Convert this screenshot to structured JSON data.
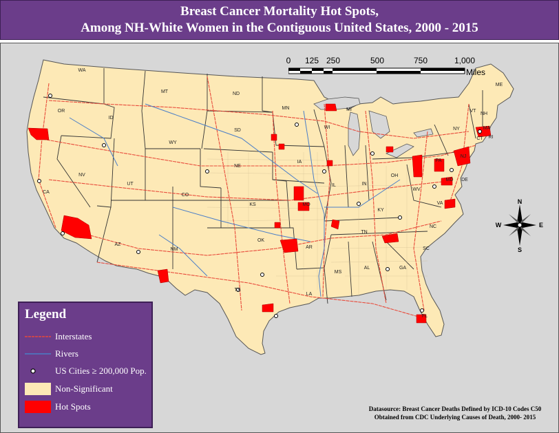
{
  "title": {
    "line1": "Breast Cancer Mortality Hot Spots,",
    "line2": "Among NH-White Women in the Contiguous United States, 2000 - 2015"
  },
  "scale_bar": {
    "labels": [
      "0",
      "125",
      "250",
      "500",
      "750",
      "1,000"
    ],
    "units": "Miles"
  },
  "compass": {
    "n": "N",
    "s": "S",
    "e": "E",
    "w": "W"
  },
  "legend": {
    "title": "Legend",
    "items": [
      {
        "label": "Interstates",
        "color": "#e84a3a"
      },
      {
        "label": "Rivers",
        "color": "#4a7ec8"
      },
      {
        "label": "US Cities ≥ 200,000 Pop.",
        "color": "#ffffff"
      },
      {
        "label": "Non-Significant",
        "color": "#fde9b6"
      },
      {
        "label": "Hot Spots",
        "color": "#ff0000"
      }
    ]
  },
  "state_labels": [
    "WA",
    "OR",
    "ID",
    "MT",
    "ND",
    "MN",
    "WI",
    "MI",
    "SD",
    "WY",
    "NV",
    "UT",
    "CO",
    "NE",
    "IA",
    "IL",
    "IN",
    "OH",
    "PA",
    "NY",
    "VT",
    "NH",
    "ME",
    "MA",
    "CT",
    "RI",
    "NJ",
    "MD",
    "DE",
    "WV",
    "VA",
    "KY",
    "TN",
    "NC",
    "SC",
    "GA",
    "AL",
    "MS",
    "AR",
    "LA",
    "TX",
    "OK",
    "KS",
    "MO",
    "NM",
    "AZ",
    "CA",
    "FL"
  ],
  "datasource": {
    "line1": "Datasource: Breast Cancer Deaths Defined by ICD-10 Codes C50",
    "line2": "Obtained from CDC Underlying Causes of Death, 2000- 2015"
  },
  "colors": {
    "background": "#d7d7d7",
    "land": "#fde9b6",
    "hotspot": "#ff0000",
    "purple": "#6b3d8a"
  }
}
